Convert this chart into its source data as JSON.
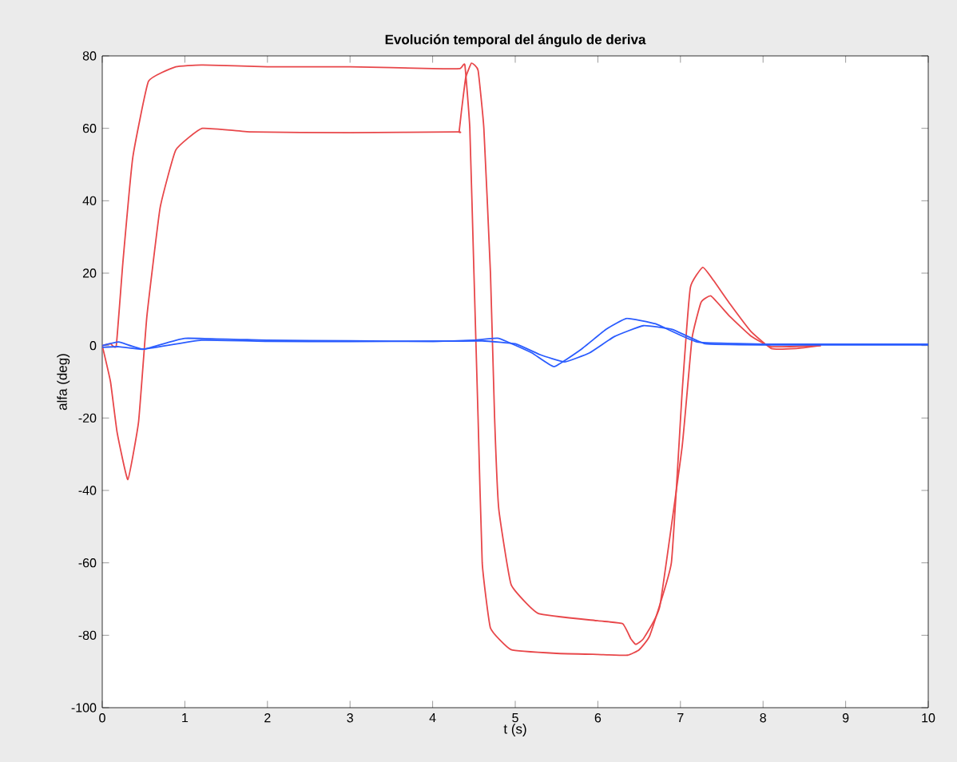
{
  "chart_data": {
    "type": "line",
    "title": "Evolución temporal del ángulo de deriva",
    "xlabel": "t (s)",
    "ylabel": "alfa (deg)",
    "xlim": [
      0,
      10
    ],
    "ylim": [
      -100,
      80
    ],
    "xticks": [
      0,
      1,
      2,
      3,
      4,
      5,
      6,
      7,
      8,
      9,
      10
    ],
    "yticks": [
      -100,
      -80,
      -60,
      -40,
      -20,
      0,
      20,
      40,
      60,
      80
    ],
    "grid": false,
    "series": [
      {
        "color": "#e8474a",
        "x": [
          0,
          0.1,
          0.17,
          0.25,
          0.37,
          0.56,
          0.89,
          1.2,
          2,
          3,
          4,
          4.33,
          4.39,
          4.45,
          4.5,
          4.55,
          4.6,
          4.7,
          4.95,
          5.5,
          6,
          6.36,
          6.5,
          6.63,
          6.89,
          7.02,
          7.12,
          7.27,
          7.4,
          7.6,
          7.85,
          8.1,
          8.4,
          8.7
        ],
        "values": [
          0,
          0.5,
          0,
          23,
          52,
          73,
          77,
          77.5,
          77,
          77,
          76.5,
          76.5,
          77.5,
          60,
          20,
          -20,
          -60,
          -78,
          -84,
          -85,
          -85.3,
          -85.5,
          -84,
          -80,
          -60,
          -13,
          16,
          21.6,
          18,
          11.5,
          4,
          -0.8,
          -0.8,
          0
        ]
      },
      {
        "color": "#e8474a",
        "x": [
          0,
          0.1,
          0.18,
          0.31,
          0.44,
          0.54,
          0.7,
          0.89,
          1.21,
          1.8,
          3,
          4.3,
          4.32,
          4.35,
          4.4,
          4.47,
          4.55,
          4.62,
          4.7,
          4.75,
          4.8,
          4.95,
          5.28,
          6,
          6.3,
          6.4,
          6.46,
          6.55,
          6.75,
          7.02,
          7.14,
          7.25,
          7.37,
          7.6,
          7.85,
          8.1,
          8.7
        ],
        "values": [
          0,
          -10,
          -24,
          -37,
          -21,
          8,
          38,
          54,
          60,
          59,
          58.8,
          59,
          59,
          65,
          74,
          78,
          76,
          60,
          20,
          -20,
          -45,
          -66,
          -74,
          -76,
          -76.8,
          -81,
          -82.5,
          -81,
          -72,
          -28,
          2,
          12,
          13.7,
          8,
          2.7,
          -0.3,
          0
        ]
      },
      {
        "color": "#2a5cff",
        "x": [
          0,
          0.2,
          0.5,
          1,
          2,
          3,
          4,
          4.5,
          4.8,
          5.2,
          5.47,
          5.8,
          6.1,
          6.35,
          6.7,
          7.2,
          8,
          10
        ],
        "values": [
          0,
          1,
          -1,
          2,
          1.5,
          1.3,
          1.2,
          1.5,
          2,
          -2,
          -5.8,
          -1,
          4.5,
          7.5,
          6,
          1,
          0.4,
          0.4
        ]
      },
      {
        "color": "#2a5cff",
        "x": [
          0,
          0.2,
          0.5,
          1.2,
          2,
          3,
          4,
          4.6,
          5,
          5.3,
          5.6,
          5.9,
          6.2,
          6.55,
          6.9,
          7.3,
          8,
          10
        ],
        "values": [
          -0.5,
          -0.3,
          -1,
          1.5,
          1.2,
          1.1,
          1.2,
          1.3,
          0.5,
          -2.5,
          -4.5,
          -2,
          2.5,
          5.5,
          4.5,
          0.5,
          0.2,
          0.2
        ]
      }
    ]
  }
}
